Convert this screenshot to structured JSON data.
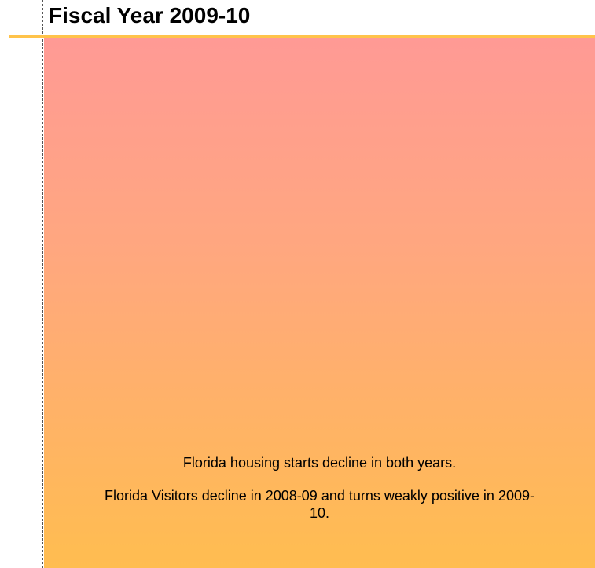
{
  "header": {
    "title": "Fiscal Year 2009-10"
  },
  "body": {
    "paragraphs": [
      "Florida housing starts decline in both years.",
      "Florida Visitors decline in 2008-09 and turns weakly positive in 2009-10."
    ]
  }
}
